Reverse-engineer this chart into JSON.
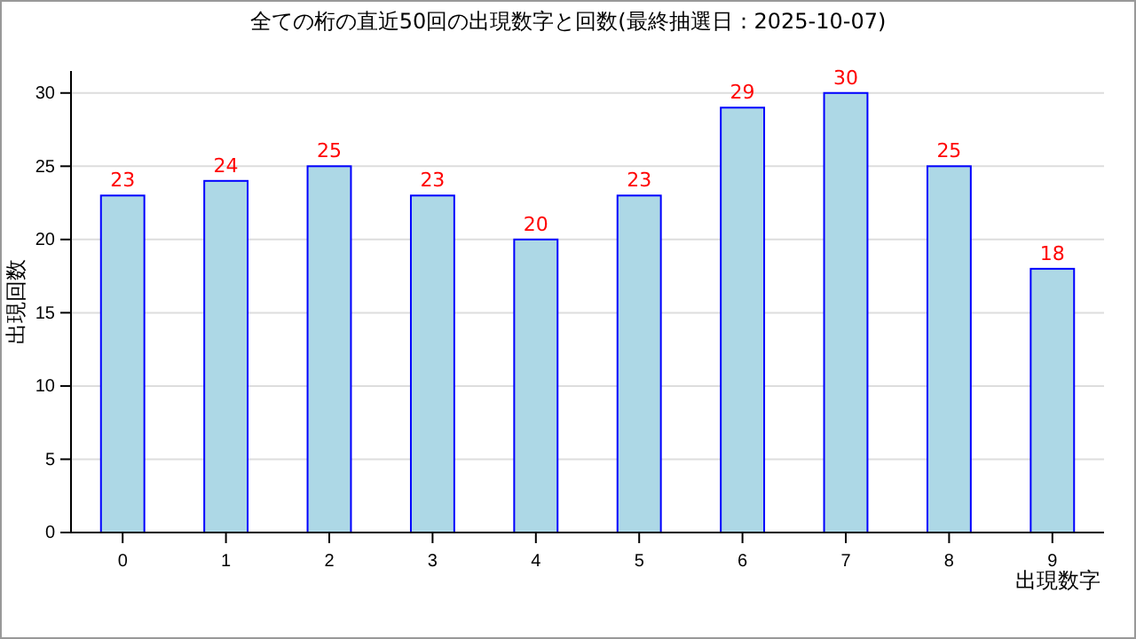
{
  "chart_data": {
    "type": "bar",
    "title": "全ての桁の直近50回の出現数字と回数(最終抽選日：2025-10-07)",
    "xlabel": "出現数字",
    "ylabel": "出現回数",
    "categories": [
      "0",
      "1",
      "2",
      "3",
      "4",
      "5",
      "6",
      "7",
      "8",
      "9"
    ],
    "values": [
      23,
      24,
      25,
      23,
      20,
      23,
      29,
      30,
      25,
      18
    ],
    "color": "#add8e6",
    "data_labels": true,
    "ylim": [
      0,
      31.5
    ],
    "yticks": [
      0,
      5,
      10,
      15,
      20,
      25,
      30
    ],
    "grid": "y"
  }
}
